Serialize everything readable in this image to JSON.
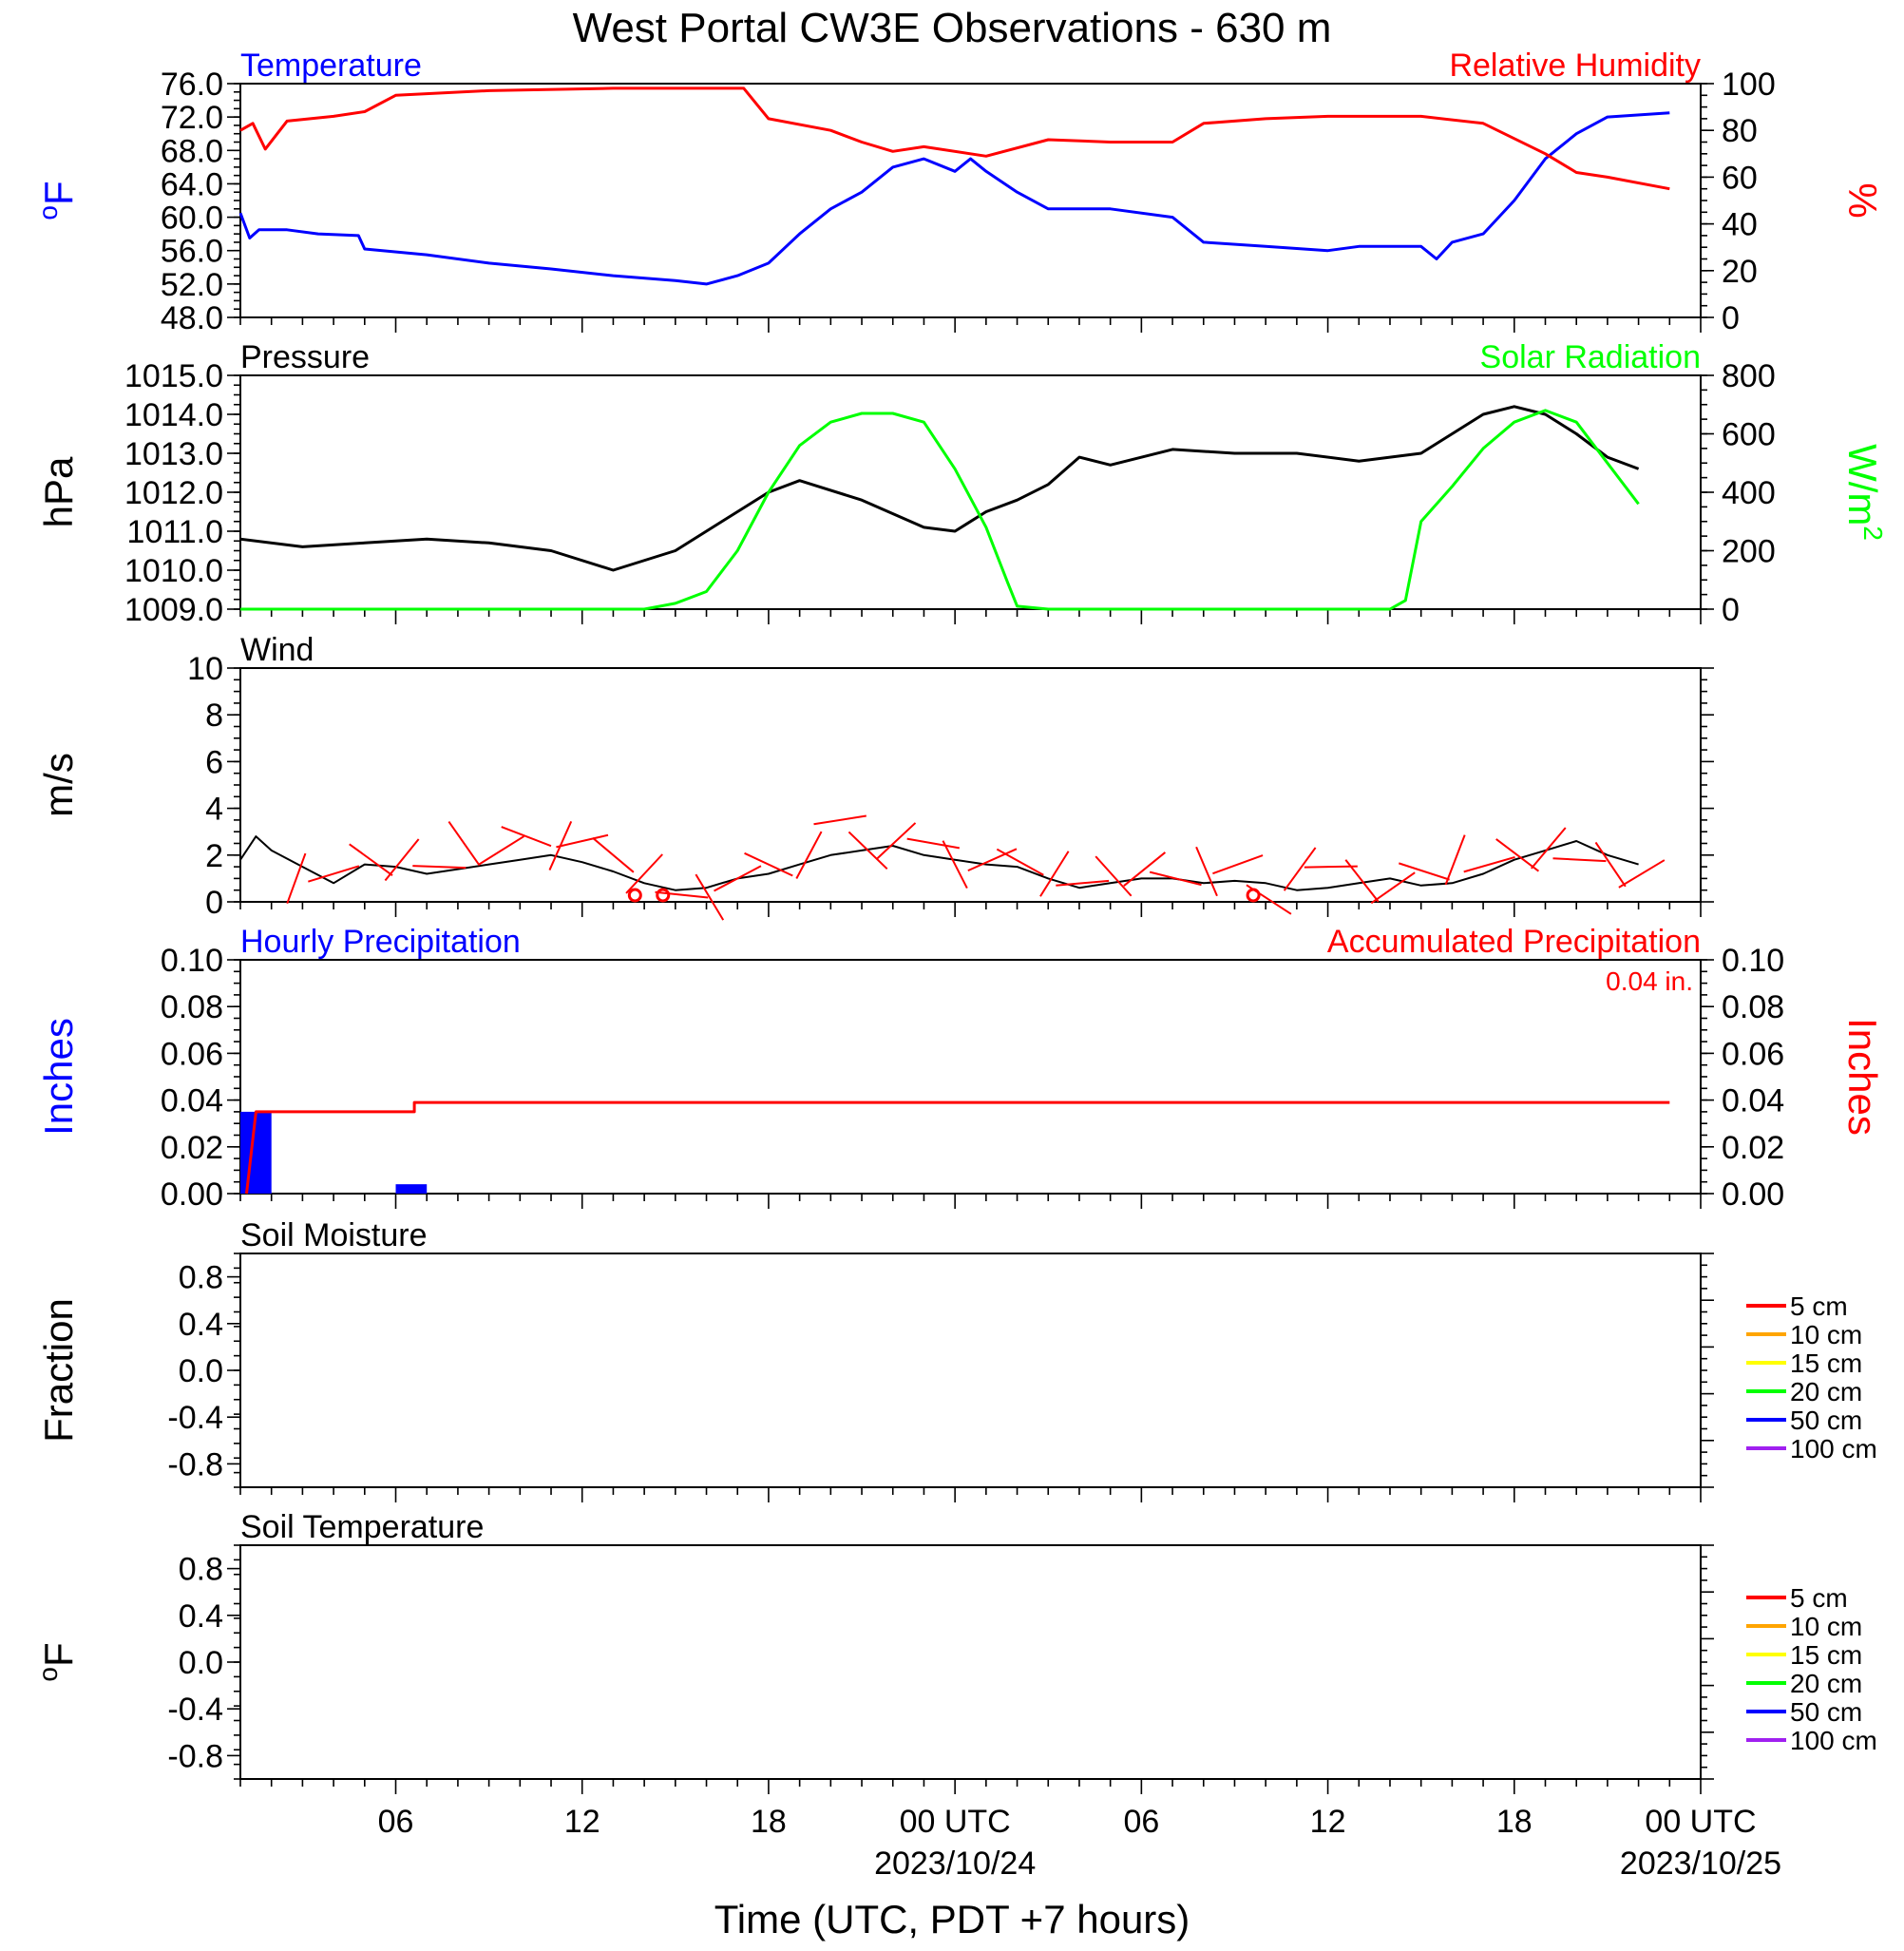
{
  "chart_data": [
    {
      "type": "line",
      "panel": "temperature-humidity",
      "title": "West Portal CW3E Observations - 630 m",
      "left_title": "Temperature",
      "right_title": "Relative Humidity",
      "ylabel_left": "oF",
      "ylabel_right": "%",
      "ylim_left": [
        48,
        76
      ],
      "ylim_right": [
        0,
        100
      ],
      "yticks_left": [
        "76.0",
        "72.0",
        "68.0",
        "64.0",
        "60.0",
        "56.0",
        "52.0",
        "48.0"
      ],
      "yticks_right": [
        "100",
        "80",
        "60",
        "40",
        "20",
        "0"
      ],
      "colors": {
        "Temperature": "#0000ff",
        "Relative Humidity": "#ff0000"
      },
      "series": [
        {
          "name": "Temperature",
          "axis": "left",
          "color": "#0000ff",
          "x": [
            0,
            0.3,
            0.6,
            1.5,
            2.5,
            3.8,
            4,
            6,
            8,
            10,
            12,
            14,
            15,
            16,
            17,
            18,
            19,
            20,
            21,
            22,
            23,
            23.5,
            24,
            25,
            26,
            28,
            30,
            31,
            33,
            35,
            36,
            38,
            38.5,
            39,
            40,
            41,
            42,
            43,
            44,
            46
          ],
          "values": [
            60.5,
            57.5,
            58.5,
            58.5,
            58,
            57.8,
            56.2,
            55.5,
            54.5,
            53.8,
            53.0,
            52.4,
            52.0,
            53.0,
            54.5,
            58.0,
            61.0,
            63.0,
            66.0,
            67.0,
            65.5,
            67.0,
            65.5,
            63.0,
            61.0,
            61.0,
            60.0,
            57.0,
            56.5,
            56.0,
            56.5,
            56.5,
            55.0,
            57.0,
            58.0,
            62.0,
            67.0,
            70.0,
            72.0,
            72.5
          ]
        },
        {
          "name": "Relative Humidity",
          "axis": "right",
          "color": "#ff0000",
          "x": [
            0,
            0.4,
            0.8,
            1.5,
            3,
            4,
            5,
            8,
            12,
            16,
            16.2,
            17,
            19,
            20,
            21,
            22,
            24,
            26,
            28,
            30,
            31,
            33,
            35,
            37,
            38,
            40,
            42,
            43,
            44,
            46
          ],
          "values": [
            80,
            83,
            72,
            84,
            86,
            88,
            95,
            97,
            98,
            98,
            98,
            85,
            80,
            75,
            71,
            73,
            69,
            76,
            75,
            75,
            83,
            85,
            86,
            86,
            86,
            83,
            70,
            62,
            60,
            55
          ]
        }
      ]
    },
    {
      "type": "line",
      "panel": "pressure-solar",
      "left_title": "Pressure",
      "right_title": "Solar Radiation",
      "ylabel_left": "hPa",
      "ylabel_right": "W/m2",
      "ylim_left": [
        1009,
        1015
      ],
      "ylim_right": [
        0,
        800
      ],
      "yticks_left": [
        "1015.0",
        "1014.0",
        "1013.0",
        "1012.0",
        "1011.0",
        "1010.0",
        "1009.0"
      ],
      "yticks_right": [
        "800",
        "600",
        "400",
        "200",
        "0"
      ],
      "series": [
        {
          "name": "Pressure",
          "axis": "left",
          "color": "#000000",
          "x": [
            0,
            2,
            4,
            6,
            8,
            10,
            12,
            14,
            16,
            17,
            18,
            20,
            22,
            23,
            24,
            25,
            26,
            27,
            28,
            30,
            32,
            34,
            36,
            38,
            39,
            40,
            41,
            42,
            43,
            44,
            45
          ],
          "values": [
            1010.8,
            1010.6,
            1010.7,
            1010.8,
            1010.7,
            1010.5,
            1010.0,
            1010.5,
            1011.5,
            1012.0,
            1012.3,
            1011.8,
            1011.1,
            1011.0,
            1011.5,
            1011.8,
            1012.2,
            1012.9,
            1012.7,
            1013.1,
            1013.0,
            1013.0,
            1012.8,
            1013.0,
            1013.5,
            1014.0,
            1014.2,
            1014.0,
            1013.5,
            1012.9,
            1012.6
          ]
        },
        {
          "name": "Solar Radiation",
          "axis": "right",
          "color": "#00ff00",
          "x": [
            0,
            13,
            14,
            15,
            16,
            17,
            18,
            19,
            20,
            21,
            22,
            23,
            24,
            24.7,
            25,
            26,
            30,
            34,
            37,
            37.5,
            38,
            39,
            40,
            41,
            42,
            43,
            44,
            45
          ],
          "values": [
            0,
            0,
            20,
            60,
            200,
            400,
            560,
            640,
            670,
            670,
            640,
            480,
            280,
            90,
            10,
            0,
            0,
            0,
            0,
            30,
            300,
            420,
            550,
            640,
            680,
            640,
            500,
            360
          ]
        }
      ]
    },
    {
      "type": "line",
      "panel": "wind",
      "left_title": "Wind",
      "ylabel_left": "m/s",
      "ylim_left": [
        0,
        10
      ],
      "yticks_left": [
        "10",
        "8",
        "6",
        "4",
        "2",
        "0"
      ],
      "series": [
        {
          "name": "Wind speed",
          "axis": "left",
          "color": "#000000",
          "x": [
            0,
            0.5,
            1,
            2,
            3,
            4,
            5,
            6,
            7,
            8,
            9,
            10,
            11,
            12,
            13,
            14,
            15,
            16,
            17,
            18,
            19,
            20,
            21,
            22,
            23,
            24,
            25,
            26,
            27,
            28,
            29,
            30,
            31,
            32,
            33,
            34,
            35,
            36,
            37,
            38,
            39,
            40,
            41,
            42,
            43,
            44,
            45
          ],
          "values": [
            1.8,
            2.8,
            2.2,
            1.5,
            0.8,
            1.6,
            1.5,
            1.2,
            1.4,
            1.6,
            1.8,
            2.0,
            1.7,
            1.3,
            0.8,
            0.5,
            0.6,
            1.0,
            1.2,
            1.6,
            2.0,
            2.2,
            2.4,
            2.0,
            1.8,
            1.6,
            1.5,
            1.0,
            0.6,
            0.8,
            1.0,
            1.0,
            0.8,
            0.9,
            0.8,
            0.5,
            0.6,
            0.8,
            1.0,
            0.7,
            0.8,
            1.2,
            1.8,
            2.2,
            2.6,
            2.0,
            1.6
          ]
        }
      ],
      "barbs": {
        "color": "#ff0000",
        "x": [
          1.8,
          3,
          4.2,
          5.2,
          6.4,
          7.2,
          8.4,
          9.2,
          10.3,
          11.0,
          12.0,
          13.0,
          14.2,
          15.1,
          16.0,
          17.0,
          18.3,
          19.3,
          20.2,
          21.1,
          22.3,
          23.0,
          24.2,
          25.1,
          26.2,
          27.1,
          28.1,
          29.1,
          30.1,
          31.1,
          32.1,
          33.1,
          34.1,
          35.1,
          36.1,
          37.1,
          38.1,
          39.1,
          40.2,
          41.1,
          42.1,
          43.1,
          44.1,
          45.1
        ],
        "speeds": [
          1.0,
          1.2,
          1.8,
          1.8,
          1.5,
          2.5,
          2.2,
          2.8,
          2.4,
          2.6,
          2.0,
          1.2,
          0.3,
          0.2,
          1.0,
          1.6,
          2.0,
          3.5,
          2.2,
          2.6,
          2.5,
          1.6,
          1.8,
          1.7,
          1.2,
          0.8,
          1.1,
          1.4,
          1.0,
          1.3,
          1.6,
          0.1,
          1.4,
          1.5,
          0.9,
          0.6,
          1.3,
          1.8,
          1.6,
          2.0,
          2.3,
          1.8,
          1.6,
          1.2
        ],
        "calm": [
          12.7,
          13.6,
          32.6
        ]
      }
    },
    {
      "type": "bar",
      "panel": "precipitation",
      "left_title": "Hourly Precipitation",
      "right_title": "Accumulated Precipitation",
      "annotation": "0.04 in.",
      "ylabel_left": "Inches",
      "ylabel_right": "Inches",
      "ylim_left": [
        0,
        0.1
      ],
      "ylim_right": [
        0,
        0.1
      ],
      "yticks_left": [
        "0.10",
        "0.08",
        "0.06",
        "0.04",
        "0.02",
        "0.00"
      ],
      "yticks_right": [
        "0.10",
        "0.08",
        "0.06",
        "0.04",
        "0.02",
        "0.00"
      ],
      "series": [
        {
          "name": "Hourly Precipitation",
          "type": "bar",
          "color": "#0000ff",
          "x": [
            0.5,
            5.5
          ],
          "values": [
            0.035,
            0.004
          ]
        },
        {
          "name": "Accumulated Precipitation",
          "type": "step",
          "color": "#ff0000",
          "x": [
            0.2,
            0.5,
            5.6,
            5.6,
            46
          ],
          "values": [
            0.0,
            0.035,
            0.035,
            0.039,
            0.039
          ]
        }
      ]
    },
    {
      "type": "line",
      "panel": "soil-moisture",
      "left_title": "Soil Moisture",
      "ylabel_left": "Fraction",
      "ylim_left": [
        -1,
        1
      ],
      "yticks_left": [
        "0.8",
        "0.4",
        "0.0",
        "-0.4",
        "-0.8"
      ],
      "legend": [
        {
          "label": "5 cm",
          "color": "#ff0000"
        },
        {
          "label": "10 cm",
          "color": "#ffa500"
        },
        {
          "label": "15 cm",
          "color": "#ffff00"
        },
        {
          "label": "20 cm",
          "color": "#00ff00"
        },
        {
          "label": "50 cm",
          "color": "#0000ff"
        },
        {
          "label": "100 cm",
          "color": "#a020f0"
        }
      ],
      "series": []
    },
    {
      "type": "line",
      "panel": "soil-temperature",
      "left_title": "Soil Temperature",
      "ylabel_left": "oF",
      "ylim_left": [
        -1,
        1
      ],
      "yticks_left": [
        "0.8",
        "0.4",
        "0.0",
        "-0.4",
        "-0.8"
      ],
      "legend": [
        {
          "label": "5 cm",
          "color": "#ff0000"
        },
        {
          "label": "10 cm",
          "color": "#ffa500"
        },
        {
          "label": "15 cm",
          "color": "#ffff00"
        },
        {
          "label": "20 cm",
          "color": "#00ff00"
        },
        {
          "label": "50 cm",
          "color": "#0000ff"
        },
        {
          "label": "100 cm",
          "color": "#a020f0"
        }
      ],
      "series": []
    }
  ],
  "x_axis": {
    "label": "Time (UTC, PDT +7 hours)",
    "xlim_hours": [
      0,
      47
    ],
    "ticks": [
      {
        "hour": 5,
        "label": "06",
        "sublabel": ""
      },
      {
        "hour": 11,
        "label": "12",
        "sublabel": ""
      },
      {
        "hour": 17,
        "label": "18",
        "sublabel": ""
      },
      {
        "hour": 23,
        "label": "00 UTC",
        "sublabel": "2023/10/24"
      },
      {
        "hour": 29,
        "label": "06",
        "sublabel": ""
      },
      {
        "hour": 35,
        "label": "12",
        "sublabel": ""
      },
      {
        "hour": 41,
        "label": "18",
        "sublabel": ""
      },
      {
        "hour": 47,
        "label": "00 UTC",
        "sublabel": "2023/10/25"
      }
    ]
  }
}
